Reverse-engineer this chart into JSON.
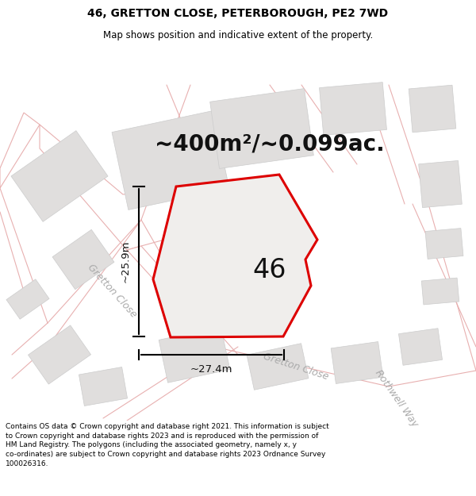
{
  "title": "46, GRETTON CLOSE, PETERBOROUGH, PE2 7WD",
  "subtitle": "Map shows position and indicative extent of the property.",
  "area_text": "~400m²/~0.099ac.",
  "number_label": "46",
  "dim_v": "~25.9m",
  "dim_h": "~27.4m",
  "road_label_gc1": "Gretton Close",
  "road_label_gc2": "Gretton Close",
  "road_label_rw": "Rothwell Way",
  "footer_text": "Contains OS data © Crown copyright and database right 2021. This information is subject to Crown copyright and database rights 2023 and is reproduced with the permission of HM Land Registry. The polygons (including the associated geometry, namely x, y co-ordinates) are subject to Crown copyright and database rights 2023 Ordnance Survey 100026316.",
  "map_bg": "#ffffff",
  "road_color": "#e8b0b0",
  "building_fill": "#e0dedd",
  "building_edge": "#cccccc",
  "property_line": "#dd0000",
  "property_fill": "#f0eeec",
  "text_black": "#111111",
  "text_road": "#aaaaaa",
  "title_fontsize": 10,
  "subtitle_fontsize": 8.5,
  "area_fontsize": 20,
  "number_fontsize": 24,
  "dim_fontsize": 9.5,
  "road_fontsize": 9,
  "footer_fontsize": 6.5
}
